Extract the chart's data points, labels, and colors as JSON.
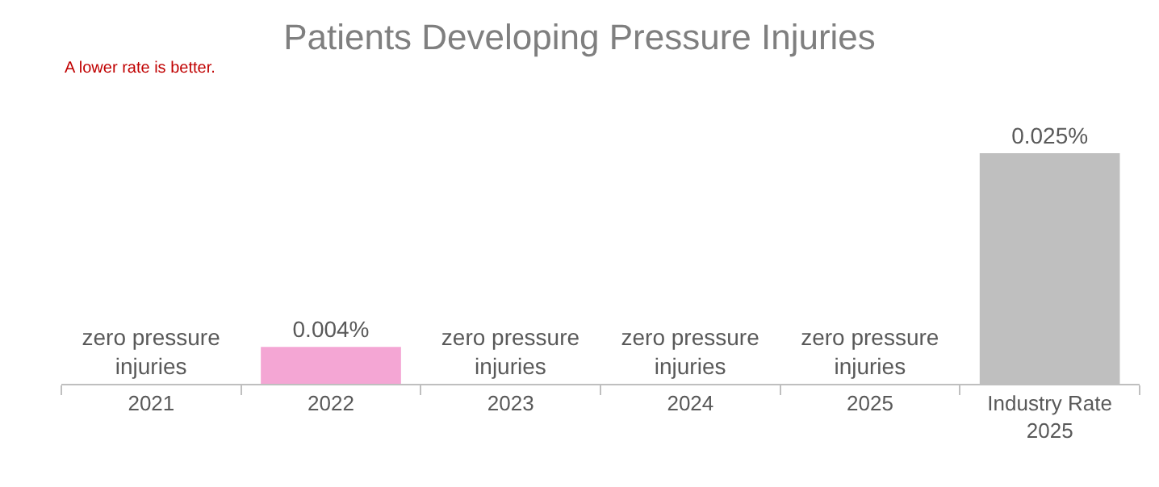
{
  "chart_data": {
    "type": "bar",
    "title": "Patients Developing Pressure Injuries",
    "categories": [
      "2021",
      "2022",
      "2023",
      "2024",
      "2025",
      "Industry Rate\n2025"
    ],
    "values": [
      0,
      0.004,
      0,
      0,
      0,
      0.025
    ],
    "colors": [
      "#f4a6d4",
      "#f4a6d4",
      "#f4a6d4",
      "#f4a6d4",
      "#f4a6d4",
      "#bfbfbf"
    ],
    "value_labels": [
      "zero pressure\ninjuries",
      "0.004%",
      "zero pressure\ninjuries",
      "zero pressure\ninjuries",
      "zero pressure\ninjuries",
      "0.025%"
    ],
    "annotations": [
      "A lower rate is better."
    ]
  }
}
